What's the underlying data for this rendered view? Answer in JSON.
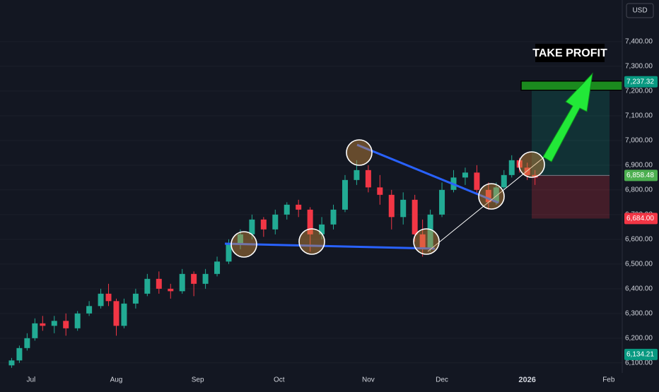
{
  "chart_data": {
    "type": "candlestick",
    "currency": "USD",
    "annotation": "TAKE PROFIT",
    "up_color": "#22ab94",
    "down_color": "#f23645",
    "x": [
      -5,
      -3,
      -1,
      1,
      3,
      6,
      9,
      12,
      15,
      18,
      20,
      22,
      24,
      27,
      30,
      33,
      36,
      39,
      42,
      45,
      48,
      51,
      54,
      57,
      60,
      63,
      66,
      69,
      72,
      75,
      78,
      81,
      84,
      87,
      90,
      93,
      96,
      99,
      101,
      103,
      106,
      109,
      112,
      115,
      118,
      120,
      122,
      124,
      126,
      128,
      130
    ],
    "open": [
      6090,
      6110,
      6160,
      6200,
      6260,
      6250,
      6270,
      6240,
      6300,
      6330,
      6380,
      6350,
      6250,
      6340,
      6380,
      6440,
      6400,
      6390,
      6460,
      6420,
      6460,
      6510,
      6580,
      6620,
      6680,
      6640,
      6700,
      6740,
      6720,
      6620,
      6660,
      6720,
      6840,
      6880,
      6810,
      6780,
      6690,
      6760,
      6620,
      6560,
      6700,
      6800,
      6850,
      6870,
      6800,
      6750,
      6810,
      6860,
      6920,
      6890,
      6860
    ],
    "high": [
      6120,
      6170,
      6220,
      6280,
      6290,
      6290,
      6300,
      6310,
      6350,
      6400,
      6420,
      6360,
      6360,
      6400,
      6460,
      6470,
      6420,
      6480,
      6470,
      6480,
      6530,
      6600,
      6640,
      6700,
      6690,
      6720,
      6750,
      6760,
      6730,
      6690,
      6740,
      6860,
      6920,
      6900,
      6860,
      6800,
      6790,
      6780,
      6680,
      6720,
      6830,
      6880,
      6890,
      6900,
      6830,
      6830,
      6880,
      6940,
      6930,
      6910,
      6880
    ],
    "low": [
      6080,
      6100,
      6150,
      6190,
      6230,
      6220,
      6210,
      6230,
      6290,
      6320,
      6330,
      6210,
      6240,
      6320,
      6370,
      6380,
      6360,
      6380,
      6370,
      6400,
      6450,
      6500,
      6560,
      6600,
      6610,
      6620,
      6680,
      6690,
      6550,
      6600,
      6640,
      6710,
      6820,
      6790,
      6740,
      6640,
      6660,
      6590,
      6530,
      6550,
      6690,
      6790,
      6820,
      6780,
      6720,
      6740,
      6800,
      6850,
      6870,
      6840,
      6820
    ],
    "close": [
      6110,
      6160,
      6200,
      6260,
      6250,
      6270,
      6240,
      6300,
      6330,
      6380,
      6350,
      6250,
      6340,
      6380,
      6440,
      6400,
      6390,
      6460,
      6420,
      6460,
      6510,
      6580,
      6620,
      6680,
      6640,
      6700,
      6740,
      6720,
      6620,
      6660,
      6720,
      6840,
      6880,
      6810,
      6780,
      6690,
      6760,
      6620,
      6560,
      6700,
      6800,
      6850,
      6870,
      6800,
      6750,
      6810,
      6860,
      6920,
      6890,
      6860,
      6850
    ],
    "xlim": [
      -8,
      152.5
    ],
    "ylim": [
      6060,
      7440
    ],
    "xticks": [
      {
        "value": 0,
        "label": "Jul"
      },
      {
        "value": 22,
        "label": "Aug"
      },
      {
        "value": 43,
        "label": "Sep"
      },
      {
        "value": 64,
        "label": "Oct"
      },
      {
        "value": 87,
        "label": "Nov"
      },
      {
        "value": 106,
        "label": "Dec"
      },
      {
        "value": 128,
        "label": "2026",
        "bold": true
      },
      {
        "value": 149,
        "label": "Feb"
      }
    ],
    "yticks": [
      {
        "value": 6100,
        "label": "6,100.00"
      },
      {
        "value": 6200,
        "label": "6,200.00"
      },
      {
        "value": 6300,
        "label": "6,300.00"
      },
      {
        "value": 6400,
        "label": "6,400.00"
      },
      {
        "value": 6500,
        "label": "6,500.00"
      },
      {
        "value": 6600,
        "label": "6,600.00"
      },
      {
        "value": 6700,
        "label": "6,700.00"
      },
      {
        "value": 6800,
        "label": "6,800.00"
      },
      {
        "value": 6900,
        "label": "6,900.00"
      },
      {
        "value": 7000,
        "label": "7,000.00"
      },
      {
        "value": 7100,
        "label": "7,100.00"
      },
      {
        "value": 7200,
        "label": "7,200.00"
      },
      {
        "value": 7300,
        "label": "7,300.00"
      },
      {
        "value": 7400,
        "label": "7,400.00"
      }
    ],
    "price_labels": [
      {
        "value": 7237.32,
        "label": "7,237.32",
        "color": "#089981"
      },
      {
        "value": 6858.48,
        "label": "6,858.48",
        "color": "#4caf50"
      },
      {
        "value": 6684.0,
        "label": "6,684.00",
        "color": "#f23645"
      },
      {
        "value": 6134.21,
        "label": "6,134.21",
        "color": "#089981"
      }
    ]
  }
}
